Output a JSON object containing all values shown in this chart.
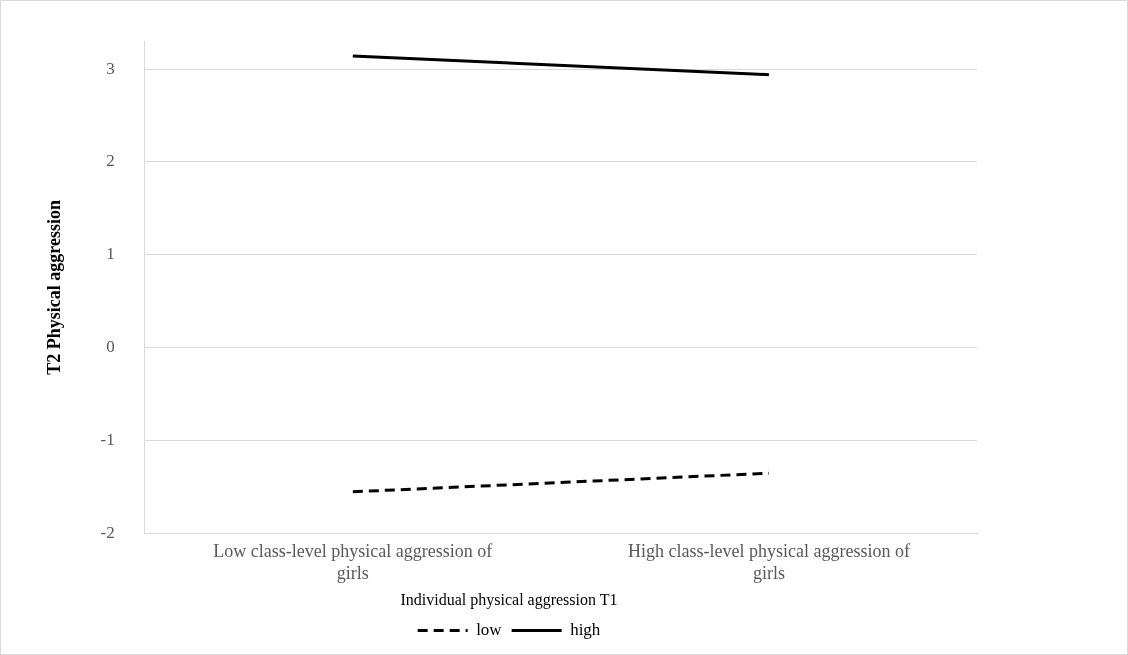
{
  "chart_data": {
    "type": "line",
    "ylabel": "T2 Physical aggression",
    "legend_title": "Individual physical aggression T1",
    "categories": [
      "Low class-level physical aggression of girls",
      "High class-level physical aggression of girls"
    ],
    "series": [
      {
        "name": "low",
        "color": "#000000",
        "values": [
          -1.55,
          -1.35
        ],
        "line_style": "dashed"
      },
      {
        "name": "high",
        "color": "#000000",
        "values": [
          3.14,
          2.94
        ],
        "line_style": "solid"
      }
    ],
    "ylim": [
      -2,
      3.3
    ],
    "yticks": [
      -2,
      -1,
      0,
      1,
      2,
      3
    ],
    "grid": "y",
    "legend": "bottom",
    "marker": "none"
  }
}
